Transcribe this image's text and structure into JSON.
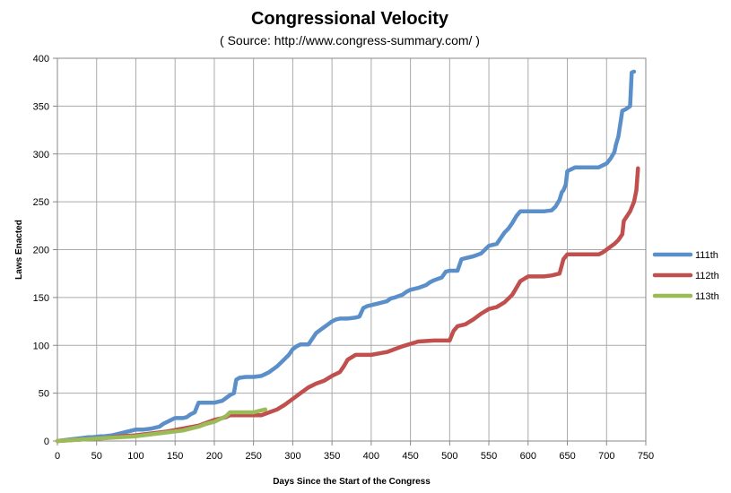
{
  "chart_data": {
    "type": "line",
    "title": "Congressional Velocity",
    "subtitle": "( Source: http://www.congress-summary.com/ )",
    "xlabel": "Days Since the Start of the Congress",
    "ylabel": "Laws Enacted",
    "xlim": [
      0,
      750
    ],
    "ylim": [
      0,
      400
    ],
    "xticks": [
      "0",
      "50",
      "100",
      "150",
      "200",
      "250",
      "300",
      "350",
      "400",
      "450",
      "500",
      "550",
      "600",
      "650",
      "700",
      "750"
    ],
    "yticks": [
      "0",
      "50",
      "100",
      "150",
      "200",
      "250",
      "300",
      "350",
      "400"
    ],
    "grid": true,
    "legend_position": "right",
    "series": [
      {
        "name": "111th",
        "color": "#5b8fc9",
        "x": [
          0,
          20,
          30,
          40,
          45,
          55,
          60,
          70,
          75,
          80,
          90,
          95,
          100,
          105,
          110,
          120,
          125,
          130,
          135,
          140,
          145,
          150,
          160,
          165,
          170,
          175,
          180,
          190,
          200,
          205,
          210,
          215,
          220,
          225,
          228,
          232,
          240,
          250,
          260,
          265,
          270,
          275,
          280,
          285,
          290,
          295,
          300,
          305,
          310,
          320,
          330,
          335,
          340,
          345,
          350,
          355,
          360,
          370,
          380,
          385,
          390,
          395,
          400,
          410,
          420,
          425,
          430,
          440,
          445,
          450,
          460,
          470,
          475,
          480,
          490,
          495,
          500,
          510,
          515,
          520,
          530,
          540,
          545,
          550,
          560,
          565,
          570,
          575,
          580,
          585,
          590,
          600,
          610,
          620,
          630,
          635,
          640,
          643,
          645,
          648,
          650,
          660,
          670,
          690,
          700,
          705,
          710,
          712,
          715,
          720,
          725,
          730,
          732,
          735
        ],
        "y": [
          0,
          2,
          3,
          4,
          4,
          5,
          5,
          6,
          7,
          8,
          10,
          11,
          12,
          12,
          12,
          13,
          14,
          15,
          18,
          20,
          22,
          24,
          24,
          25,
          28,
          30,
          40,
          40,
          40,
          41,
          42,
          45,
          48,
          50,
          64,
          66,
          67,
          67,
          68,
          70,
          72,
          75,
          78,
          82,
          86,
          90,
          96,
          99,
          101,
          101,
          113,
          116,
          119,
          122,
          125,
          127,
          128,
          128,
          129,
          130,
          139,
          141,
          142,
          144,
          146,
          149,
          150,
          153,
          156,
          158,
          160,
          163,
          166,
          168,
          171,
          177,
          178,
          178,
          190,
          191,
          193,
          196,
          200,
          204,
          206,
          212,
          218,
          222,
          228,
          235,
          240,
          240,
          240,
          240,
          241,
          245,
          252,
          260,
          262,
          268,
          282,
          286,
          286,
          286,
          290,
          295,
          302,
          310,
          318,
          345,
          347,
          350,
          385,
          386
        ]
      },
      {
        "name": "112th",
        "color": "#c0504d",
        "x": [
          0,
          20,
          40,
          60,
          80,
          100,
          120,
          140,
          160,
          180,
          200,
          210,
          215,
          220,
          240,
          260,
          270,
          280,
          290,
          300,
          310,
          320,
          330,
          340,
          350,
          360,
          365,
          370,
          380,
          400,
          420,
          440,
          460,
          480,
          500,
          505,
          510,
          520,
          530,
          540,
          550,
          560,
          570,
          580,
          585,
          590,
          600,
          620,
          630,
          640,
          645,
          650,
          660,
          680,
          690,
          695,
          700,
          705,
          710,
          715,
          720,
          722,
          730,
          735,
          738,
          740
        ],
        "y": [
          0,
          1,
          2,
          3,
          5,
          6,
          8,
          10,
          13,
          16,
          22,
          24,
          25,
          27,
          27,
          27,
          30,
          33,
          38,
          44,
          50,
          56,
          60,
          63,
          68,
          72,
          78,
          85,
          90,
          90,
          93,
          99,
          104,
          105,
          105,
          115,
          120,
          122,
          127,
          133,
          138,
          140,
          145,
          153,
          160,
          167,
          172,
          172,
          173,
          175,
          190,
          195,
          195,
          195,
          195,
          197,
          200,
          203,
          206,
          210,
          216,
          230,
          240,
          250,
          262,
          285
        ]
      },
      {
        "name": "113th",
        "color": "#9bbb59",
        "x": [
          0,
          20,
          40,
          60,
          80,
          100,
          120,
          140,
          160,
          170,
          180,
          190,
          200,
          205,
          210,
          215,
          220,
          230,
          240,
          250,
          255,
          260,
          265
        ],
        "y": [
          0,
          1,
          2,
          3,
          4,
          5,
          7,
          9,
          11,
          13,
          15,
          18,
          20,
          22,
          24,
          26,
          30,
          30,
          30,
          30,
          31,
          32,
          33
        ]
      }
    ]
  }
}
